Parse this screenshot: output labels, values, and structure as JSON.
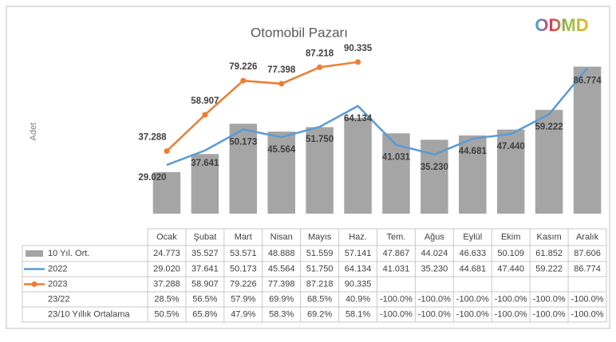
{
  "chart_data": {
    "type": "bar",
    "title": "Otomobil Pazarı",
    "ylabel": "Adet",
    "logo": "ODMD",
    "categories": [
      "Ocak",
      "Şubat",
      "Mart",
      "Nisan",
      "Mayıs",
      "Haz.",
      "Tem.",
      "Ağus",
      "Eylül",
      "Ekim",
      "Kasım",
      "Aralık"
    ],
    "ylim": [
      0,
      95000
    ],
    "series": [
      {
        "name": "10 Yıl. Ort.",
        "type": "bar",
        "color": "#a5a5a5",
        "values": [
          24773,
          35527,
          53571,
          48888,
          51559,
          57141,
          47867,
          44024,
          46633,
          50109,
          61852,
          87606
        ],
        "value_labels": [
          "24.773",
          "35.527",
          "53.571",
          "48.888",
          "51.559",
          "57.141",
          "47.867",
          "44.024",
          "46.633",
          "50.109",
          "61.852",
          "87.606"
        ]
      },
      {
        "name": "2022",
        "type": "line",
        "color": "#5b9bd5",
        "values": [
          29020,
          37641,
          50173,
          45564,
          51750,
          64134,
          41031,
          35230,
          44681,
          47440,
          59222,
          86774
        ],
        "value_labels": [
          "29.020",
          "37.641",
          "50.173",
          "45.564",
          "51.750",
          "64.134",
          "41.031",
          "35.230",
          "44.681",
          "47.440",
          "59.222",
          "86.774"
        ]
      },
      {
        "name": "2023",
        "type": "line",
        "color": "#ed7d31",
        "markers": true,
        "values": [
          37288,
          58907,
          79226,
          77398,
          87218,
          90335,
          null,
          null,
          null,
          null,
          null,
          null
        ],
        "value_labels": [
          "37.288",
          "58.907",
          "79.226",
          "77.398",
          "87.218",
          "90.335",
          null,
          null,
          null,
          null,
          null,
          null
        ]
      }
    ],
    "rows": [
      {
        "name": "23/22",
        "values": [
          "28.5%",
          "56.5%",
          "57.9%",
          "69.9%",
          "68.5%",
          "40.9%",
          "-100.0%",
          "-100.0%",
          "-100.0%",
          "-100.0%",
          "-100.0%",
          "-100.0%"
        ]
      },
      {
        "name": "23/10 Yıllık Ortalama",
        "values": [
          "50.5%",
          "65.8%",
          "47.9%",
          "58.3%",
          "69.2%",
          "58.1%",
          "-100.0%",
          "-100.0%",
          "-100.0%",
          "-100.0%",
          "-100.0%",
          "-100.0%"
        ]
      }
    ]
  }
}
